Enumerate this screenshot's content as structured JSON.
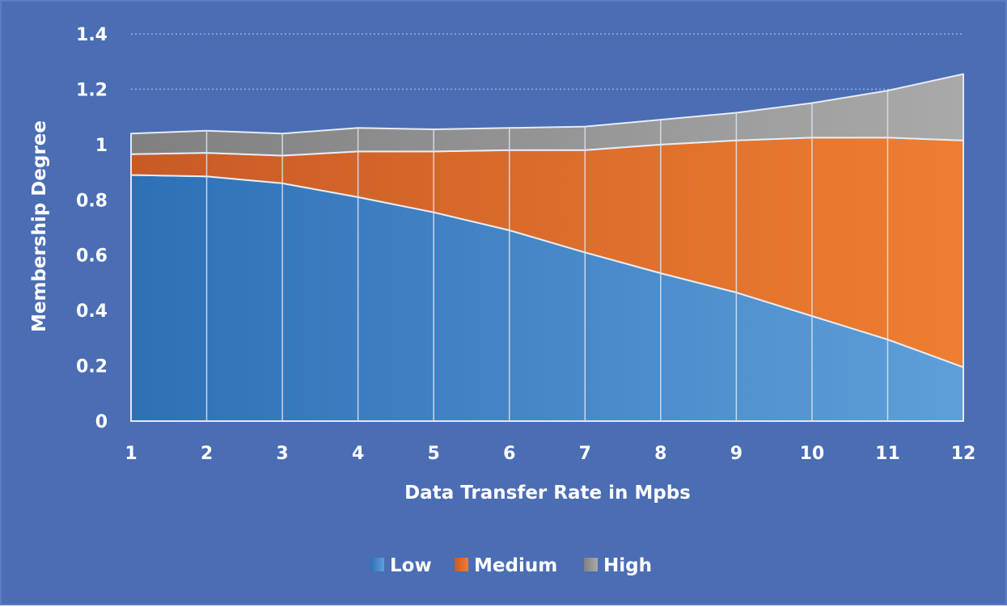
{
  "chart_data": {
    "type": "area",
    "stacked": true,
    "x": [
      1,
      2,
      3,
      4,
      5,
      6,
      7,
      8,
      9,
      10,
      11,
      12
    ],
    "series": [
      {
        "name": "Low",
        "values": [
          0.89,
          0.885,
          0.86,
          0.81,
          0.755,
          0.69,
          0.61,
          0.535,
          0.465,
          0.38,
          0.295,
          0.195
        ]
      },
      {
        "name": "Medium",
        "values": [
          0.075,
          0.085,
          0.1,
          0.165,
          0.22,
          0.29,
          0.37,
          0.465,
          0.55,
          0.645,
          0.73,
          0.82
        ]
      },
      {
        "name": "High",
        "values": [
          0.075,
          0.08,
          0.08,
          0.085,
          0.08,
          0.08,
          0.085,
          0.09,
          0.1,
          0.125,
          0.17,
          0.24
        ]
      }
    ],
    "colors": {
      "Low": "#4f93d2",
      "Medium": "#e8782e",
      "High": "#9c9c9c"
    },
    "title": "",
    "xlabel": "Data Transfer Rate in Mpbs",
    "ylabel": "Membership Degree",
    "ylim": [
      0,
      1.4
    ],
    "y_ticks": [
      "0",
      "0.2",
      "0.4",
      "0.6",
      "0.8",
      "1",
      "1.2",
      "1.4"
    ],
    "x_ticks": [
      "1",
      "2",
      "3",
      "4",
      "5",
      "6",
      "7",
      "8",
      "9",
      "10",
      "11",
      "12"
    ],
    "legend": [
      "Low",
      "Medium",
      "High"
    ],
    "legend_position": "bottom",
    "grid": true
  }
}
